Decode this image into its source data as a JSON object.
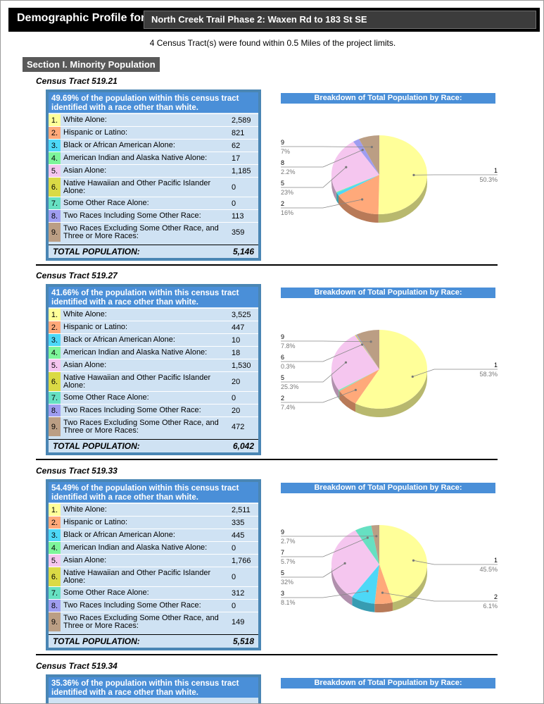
{
  "header": {
    "label": "Demographic Profile for:",
    "project": "North Creek Trail Phase 2: Waxen Rd to 183 St SE"
  },
  "subtitle": "4 Census Tract(s) were found within 0.5 Miles of the project limits.",
  "section": "Section I. Minority Population",
  "chart_title": "Breakdown of Total Population by Race:",
  "total_label": "TOTAL POPULATION:",
  "race_colors": [
    "#ffff99",
    "#ffa97a",
    "#4dd8f7",
    "#7df59a",
    "#f5c6ef",
    "#dada45",
    "#66e0c2",
    "#9f9df0",
    "#bb9e84"
  ],
  "row_labels": [
    "White Alone:",
    "Hispanic or Latino:",
    "Black or African American Alone:",
    "American Indian and Alaska Native Alone:",
    "Asian Alone:",
    "Native Hawaiian and Other Pacific Islander Alone:",
    "Some Other Race Alone:",
    "Two Races Including Some Other Race:",
    "Two Races Excluding Some Other Race, and Three or More Races:"
  ],
  "tracts": [
    {
      "title": "Census Tract 519.21",
      "summary": "49.69% of the population within this census tract identified with a race other than white.",
      "values": [
        "2,589",
        "821",
        "62",
        "17",
        "1,185",
        "0",
        "0",
        "113",
        "359"
      ],
      "total": "5,146",
      "callouts": [
        {
          "n": "9",
          "pct": "7%"
        },
        {
          "n": "8",
          "pct": "2.2%"
        },
        {
          "n": "5",
          "pct": "23%"
        },
        {
          "n": "2",
          "pct": "16%"
        },
        {
          "n": "1",
          "pct": "50.3%"
        }
      ]
    },
    {
      "title": "Census Tract 519.27",
      "summary": "41.66% of the population within this census tract identified with a race other than white.",
      "values": [
        "3,525",
        "447",
        "10",
        "18",
        "1,530",
        "20",
        "0",
        "20",
        "472"
      ],
      "total": "6,042",
      "callouts": [
        {
          "n": "9",
          "pct": "7.8%"
        },
        {
          "n": "6",
          "pct": "0.3%"
        },
        {
          "n": "5",
          "pct": "25.3%"
        },
        {
          "n": "2",
          "pct": "7.4%"
        },
        {
          "n": "1",
          "pct": "58.3%"
        }
      ]
    },
    {
      "title": "Census Tract 519.33",
      "summary": "54.49% of the population within this census tract identified with a race other than white.",
      "values": [
        "2,511",
        "335",
        "445",
        "0",
        "1,766",
        "0",
        "312",
        "0",
        "149"
      ],
      "total": "5,518",
      "callouts": [
        {
          "n": "9",
          "pct": "2.7%"
        },
        {
          "n": "7",
          "pct": "5.7%"
        },
        {
          "n": "5",
          "pct": "32%"
        },
        {
          "n": "3",
          "pct": "8.1%"
        },
        {
          "n": "1",
          "pct": "45.5%"
        },
        {
          "n": "2",
          "pct": "6.1%"
        }
      ]
    },
    {
      "title": "Census Tract 519.34",
      "summary": "35.36% of the population within this census tract identified with a race other than white."
    }
  ]
}
